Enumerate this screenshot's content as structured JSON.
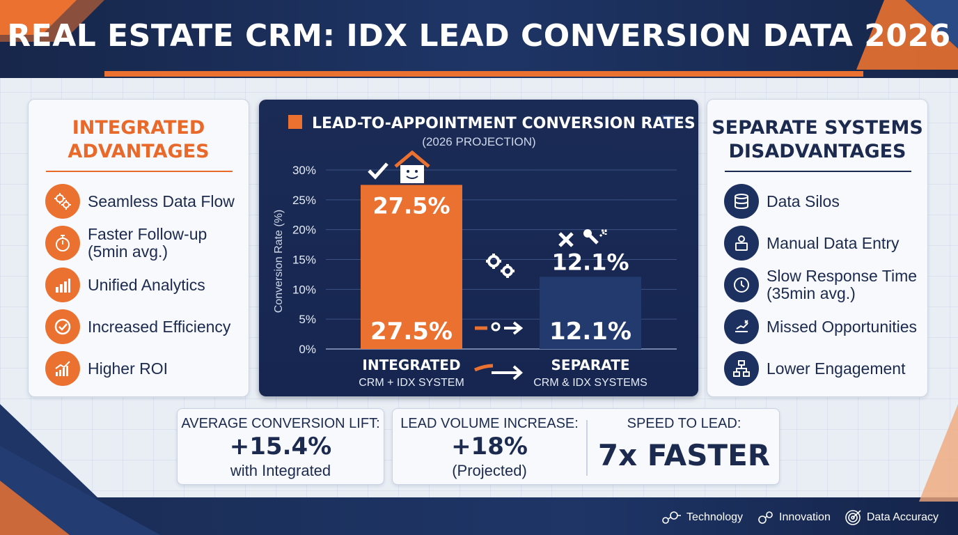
{
  "title": "REAL ESTATE CRM: IDX LEAD CONVERSION DATA 2026",
  "colors": {
    "navy": "#1b2a4e",
    "orange": "#ea7130",
    "bar_integrated": "#ea7130",
    "bar_separate": "#223a6e",
    "panel": "#1a2b55"
  },
  "left_card": {
    "title": "INTEGRATED\nADVANTAGES",
    "items": [
      {
        "label": "Seamless Data Flow",
        "icon": "gears-icon"
      },
      {
        "label": "Faster Follow-up\n(5min avg.)",
        "icon": "stopwatch-icon"
      },
      {
        "label": "Unified Analytics",
        "icon": "bar-chart-icon"
      },
      {
        "label": "Increased Efficiency",
        "icon": "check-icon"
      },
      {
        "label": "Higher ROI",
        "icon": "growth-chart-icon"
      }
    ]
  },
  "right_card": {
    "title": "SEPARATE SYSTEMS\nDISADVANTAGES",
    "items": [
      {
        "label": "Data Silos",
        "icon": "database-icon"
      },
      {
        "label": "Manual Data Entry",
        "icon": "person-computer-icon"
      },
      {
        "label": "Slow Response Time\n(35min avg.)",
        "icon": "clock-icon"
      },
      {
        "label": "Missed Opportunities",
        "icon": "missed-target-icon"
      },
      {
        "label": "Lower Engagement",
        "icon": "network-icon"
      }
    ]
  },
  "chart_data": {
    "type": "bar",
    "title": "LEAD-TO-APPOINTMENT CONVERSION RATES",
    "subtitle": "(2026 PROJECTION)",
    "ylabel": "Conversion Rate (%)",
    "ylim": [
      0,
      30
    ],
    "yticks": [
      "0%",
      "5%",
      "10%",
      "15%",
      "20%",
      "25%",
      "30%"
    ],
    "grid": true,
    "categories": [
      {
        "label": "INTEGRATED",
        "sublabel": "CRM + IDX SYSTEM"
      },
      {
        "label": "SEPARATE",
        "sublabel": "CRM & IDX SYSTEMS"
      }
    ],
    "values": [
      27.5,
      12.1
    ],
    "data_labels": [
      "27.5%",
      "12.1%"
    ]
  },
  "stats": [
    {
      "label": "AVERAGE CONVERSION LIFT:",
      "value": "+15.4%",
      "sub": "with Integrated"
    },
    {
      "label": "LEAD VOLUME INCREASE:",
      "value": "+18%",
      "sub": "(Projected)"
    },
    {
      "label": "SPEED TO LEAD:",
      "value": "7x FASTER",
      "sub": ""
    }
  ],
  "footer_tags": [
    {
      "label": "Technology",
      "icon": "technology-icon"
    },
    {
      "label": "Innovation",
      "icon": "innovation-icon"
    },
    {
      "label": "Data Accuracy",
      "icon": "target-icon"
    }
  ]
}
